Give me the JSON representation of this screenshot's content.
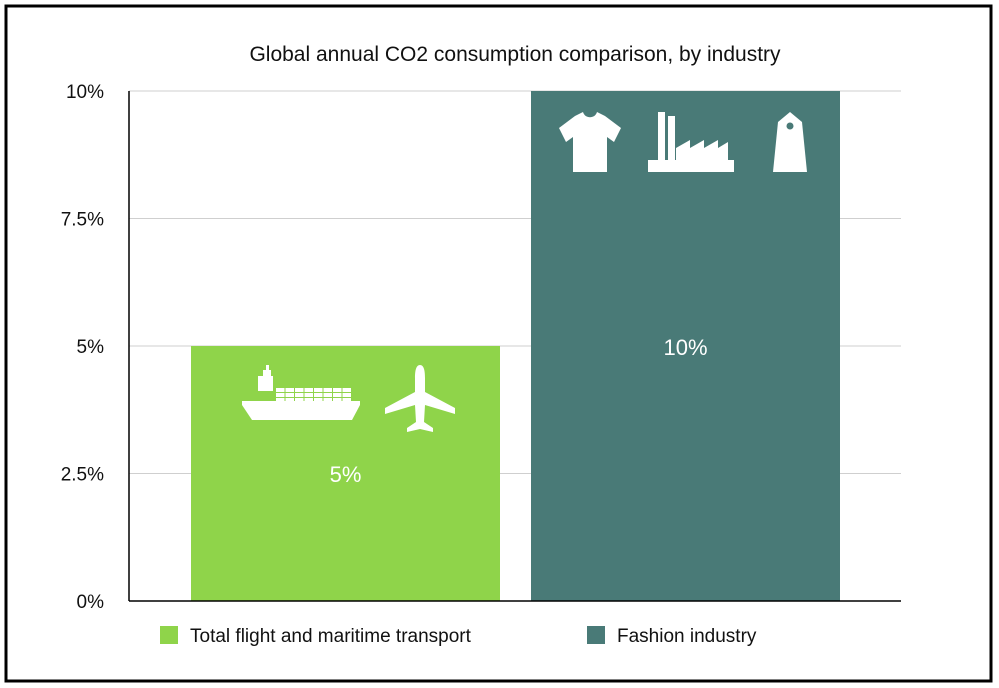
{
  "chart_data": {
    "type": "bar",
    "title": "Global annual CO2 consumption comparison, by industry",
    "categories": [
      "Total flight and maritime transport",
      "Fashion industry"
    ],
    "values": [
      5,
      10
    ],
    "value_labels": [
      "5%",
      "10%"
    ],
    "ylim": [
      0,
      10
    ],
    "yticks": [
      0,
      2.5,
      5,
      7.5,
      10
    ],
    "ytick_labels": [
      "0%",
      "2.5%",
      "5%",
      "7.5%",
      "10%"
    ],
    "grid": true,
    "legend_position": "bottom",
    "legend": [
      {
        "label": "Total flight and maritime transport",
        "color": "#8fd44a"
      },
      {
        "label": "Fashion industry",
        "color": "#497a77"
      }
    ],
    "colors": [
      "#8fd44a",
      "#497a77"
    ],
    "bar_icons": [
      [
        "cargo-ship-icon",
        "airplane-icon"
      ],
      [
        "t-shirt-icon",
        "factory-icon",
        "price-tag-icon"
      ]
    ]
  }
}
